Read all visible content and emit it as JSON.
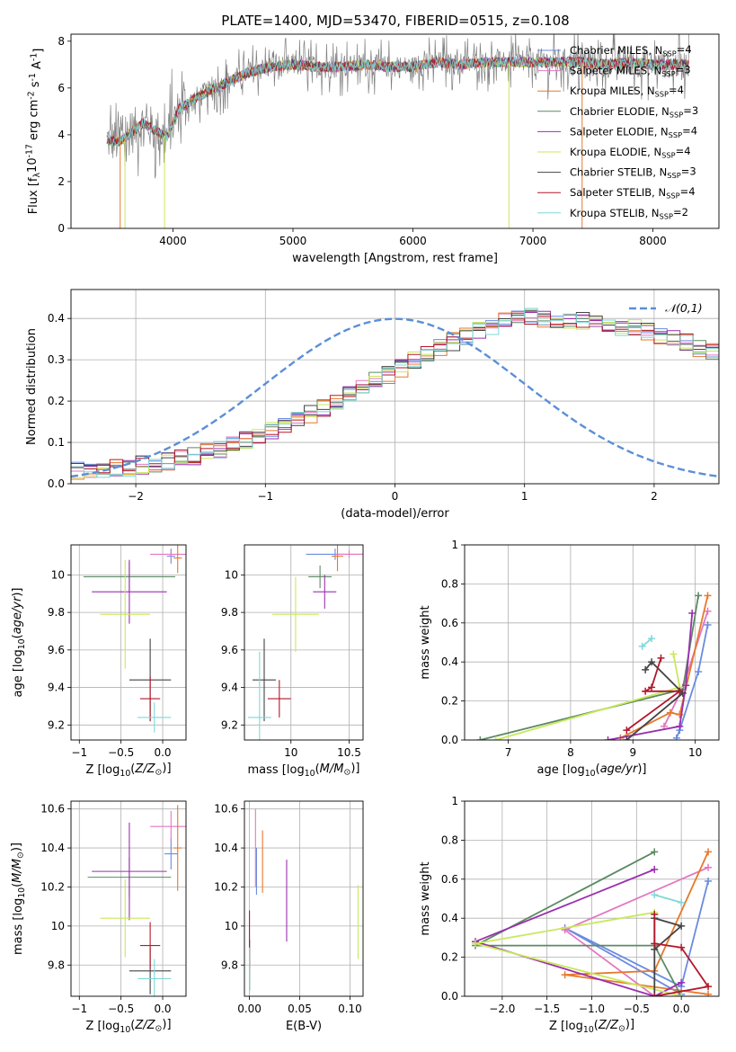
{
  "figure": {
    "title": "PLATE=1400, MJD=53470, FIBERID=0515, z=0.108"
  },
  "colors": {
    "chabrier_miles": "#6a8be0",
    "salpeter_miles": "#e377c2",
    "kroupa_miles": "#e8782a",
    "chabrier_elodie": "#5b8a63",
    "salpeter_elodie": "#9b2fae",
    "kroupa_elodie": "#c9e85a",
    "chabrier_stelib": "#444444",
    "salpeter_stelib": "#b2182b",
    "kroupa_stelib": "#7fd8d8",
    "data": "#808080",
    "normal_curve": "#5b8fd8"
  },
  "chart_data": [
    {
      "id": "spectrum",
      "type": "line",
      "title": "PLATE=1400, MJD=53470, FIBERID=0515, z=0.108",
      "xlabel": "wavelength [Angstrom, rest frame]",
      "ylabel": "Flux [f$_\\lambda$10$^{-17}$ erg cm$^{-2}$ s$^{-1}$ A$^{-1}$]",
      "xlim": [
        3150,
        8550
      ],
      "ylim": [
        0,
        8.3
      ],
      "xticks": [
        "4000",
        "5000",
        "6000",
        "7000",
        "8000"
      ],
      "yticks": [
        "0",
        "2",
        "4",
        "6",
        "8"
      ],
      "grid": false,
      "legend_position": "top-right",
      "legend": [
        {
          "key": "chabrier_miles",
          "label": "Chabrier MILES, N$_{SSP}$=4"
        },
        {
          "key": "salpeter_miles",
          "label": "Salpeter MILES, N$_{SSP}$=3"
        },
        {
          "key": "kroupa_miles",
          "label": "Kroupa MILES, N$_{SSP}$=4"
        },
        {
          "key": "chabrier_elodie",
          "label": "Chabrier ELODIE, N$_{SSP}$=3"
        },
        {
          "key": "salpeter_elodie",
          "label": "Salpeter ELODIE, N$_{SSP}$=4"
        },
        {
          "key": "kroupa_elodie",
          "label": "Kroupa ELODIE, N$_{SSP}$=4"
        },
        {
          "key": "chabrier_stelib",
          "label": "Chabrier STELIB, N$_{SSP}$=3"
        },
        {
          "key": "salpeter_stelib",
          "label": "Salpeter STELIB, N$_{SSP}$=4"
        },
        {
          "key": "kroupa_stelib",
          "label": "Kroupa STELIB, N$_{SSP}$=2"
        }
      ],
      "continuum": {
        "wavelength": [
          3450,
          3550,
          3650,
          3750,
          3850,
          3950,
          4050,
          4200,
          4400,
          4600,
          4800,
          5000,
          5200,
          5400,
          5600,
          5800,
          6000,
          6200,
          6400,
          6600,
          6800,
          7000,
          7200,
          7400,
          7600,
          7800,
          8000,
          8200
        ],
        "flux": [
          3.8,
          3.7,
          4.1,
          4.5,
          4.2,
          3.9,
          5.1,
          5.6,
          6.1,
          6.6,
          6.9,
          7.0,
          6.9,
          6.9,
          7.0,
          6.9,
          6.9,
          7.1,
          7.0,
          7.1,
          7.1,
          7.1,
          7.1,
          7.1,
          7.0,
          7.1,
          7.0,
          7.0
        ]
      }
    },
    {
      "id": "residuals",
      "type": "histogram",
      "xlabel": "(data-model)/error",
      "ylabel": "Normed distribution",
      "xlim": [
        -2.5,
        2.5
      ],
      "ylim": [
        0,
        0.47
      ],
      "xticks": [
        "−2",
        "−1",
        "0",
        "1",
        "2"
      ],
      "yticks": [
        "0.0",
        "0.1",
        "0.2",
        "0.3",
        "0.4"
      ],
      "grid": true,
      "legend_position": "top-right",
      "legend_label": "$\\mathcal{N}(0,1)$",
      "bin_width": 0.1,
      "bin_start": -2.5,
      "base_density": [
        0.03,
        0.031,
        0.034,
        0.037,
        0.04,
        0.045,
        0.049,
        0.055,
        0.06,
        0.068,
        0.076,
        0.085,
        0.094,
        0.105,
        0.116,
        0.128,
        0.141,
        0.155,
        0.169,
        0.184,
        0.199,
        0.215,
        0.231,
        0.247,
        0.264,
        0.28,
        0.297,
        0.313,
        0.329,
        0.344,
        0.358,
        0.371,
        0.382,
        0.392,
        0.399,
        0.402,
        0.401,
        0.399,
        0.397,
        0.394,
        0.39,
        0.386,
        0.381,
        0.375,
        0.368,
        0.36,
        0.351,
        0.341,
        0.33,
        0.318,
        0.306,
        0.293,
        0.28,
        0.266,
        0.252,
        0.238,
        0.223,
        0.209,
        0.195,
        0.181,
        0.167,
        0.154,
        0.141,
        0.128,
        0.116,
        0.105,
        0.094,
        0.084,
        0.075,
        0.066,
        0.058,
        0.052,
        0.047,
        0.043,
        0.04,
        0.037,
        0.035,
        0.033,
        0.032,
        0.031,
        0.03,
        0.03,
        0.029,
        0.029,
        0.028,
        0.028,
        0.028,
        0.028,
        0.027,
        0.027,
        0.027,
        0.027,
        0.027,
        0.027,
        0.027,
        0.027,
        0.027,
        0.027,
        0.027,
        0.027
      ]
    },
    {
      "id": "age_vs_Z",
      "type": "scatter",
      "xlabel": "Z [log$_{10}$($Z/Z_\\odot$)]",
      "ylabel": "age  [log$_{10}$($age/yr$)]",
      "xlim": [
        -1.1,
        0.28
      ],
      "ylim": [
        9.12,
        10.16
      ],
      "xticks": [
        -1.0,
        -0.5,
        0.0
      ],
      "yticks": [
        9.2,
        9.4,
        9.6,
        9.8,
        10.0
      ],
      "grid": true,
      "points": [
        {
          "key": "chabrier_miles",
          "x": 0.1,
          "y": 10.1,
          "xerr": 0.05,
          "yerr": 0.04
        },
        {
          "key": "salpeter_miles",
          "x": 0.1,
          "y": 10.11,
          "xerr": 0.25,
          "yerr": 0.02
        },
        {
          "key": "kroupa_miles",
          "x": 0.18,
          "y": 10.09,
          "xerr": 0.05,
          "yerr": 0.08
        },
        {
          "key": "chabrier_elodie",
          "x": -0.4,
          "y": 9.99,
          "xerr": 0.55,
          "yerr": 0.08
        },
        {
          "key": "salpeter_elodie",
          "x": -0.4,
          "y": 9.91,
          "xerr": 0.45,
          "yerr": 0.17
        },
        {
          "key": "kroupa_elodie",
          "x": -0.45,
          "y": 9.79,
          "xerr": 0.3,
          "yerr": 0.29
        },
        {
          "key": "chabrier_stelib",
          "x": -0.15,
          "y": 9.44,
          "xerr": 0.25,
          "yerr": 0.22
        },
        {
          "key": "salpeter_stelib",
          "x": -0.15,
          "y": 9.34,
          "xerr": 0.12,
          "yerr": 0.12
        },
        {
          "key": "kroupa_stelib",
          "x": -0.1,
          "y": 9.24,
          "xerr": 0.2,
          "yerr": 0.08
        }
      ]
    },
    {
      "id": "age_vs_mass",
      "type": "scatter",
      "xlabel": "mass [log$_{10}$($M/M_\\odot$)]",
      "ylabel": "",
      "xlim": [
        9.6,
        10.62
      ],
      "ylim": [
        9.12,
        10.16
      ],
      "xticks": [
        10.0,
        10.5
      ],
      "yticks": [
        9.2,
        9.4,
        9.6,
        9.8,
        10.0
      ],
      "grid": true,
      "points": [
        {
          "key": "chabrier_miles",
          "x": 10.38,
          "y": 10.11,
          "xerr": 0.25,
          "yerr": 0.03
        },
        {
          "key": "salpeter_miles",
          "x": 10.5,
          "y": 10.11,
          "xerr": 0.12,
          "yerr": 0.02
        },
        {
          "key": "kroupa_miles",
          "x": 10.4,
          "y": 10.1,
          "xerr": 0.05,
          "yerr": 0.08
        },
        {
          "key": "chabrier_elodie",
          "x": 10.25,
          "y": 9.99,
          "xerr": 0.1,
          "yerr": 0.06
        },
        {
          "key": "salpeter_elodie",
          "x": 10.29,
          "y": 9.91,
          "xerr": 0.1,
          "yerr": 0.09
        },
        {
          "key": "kroupa_elodie",
          "x": 10.04,
          "y": 9.79,
          "xerr": 0.2,
          "yerr": 0.2
        },
        {
          "key": "chabrier_stelib",
          "x": 9.77,
          "y": 9.44,
          "xerr": 0.1,
          "yerr": 0.22
        },
        {
          "key": "salpeter_stelib",
          "x": 9.9,
          "y": 9.34,
          "xerr": 0.1,
          "yerr": 0.1
        },
        {
          "key": "kroupa_stelib",
          "x": 9.73,
          "y": 9.24,
          "xerr": 0.1,
          "yerr": 0.35
        }
      ]
    },
    {
      "id": "weights_vs_age",
      "type": "line",
      "xlabel": "age  [log$_{10}$($age/yr$)]",
      "ylabel": "mass weight",
      "xlim": [
        6.3,
        10.38
      ],
      "ylim": [
        0,
        1
      ],
      "xticks": [
        7,
        8,
        9,
        10
      ],
      "yticks": [
        0.0,
        0.2,
        0.4,
        0.6,
        0.8,
        1.0
      ],
      "grid": true,
      "series": [
        {
          "key": "chabrier_miles",
          "x": [
            10.2,
            10.05,
            9.75,
            9.7
          ],
          "y": [
            0.59,
            0.35,
            0.05,
            0.01
          ]
        },
        {
          "key": "salpeter_miles",
          "x": [
            10.2,
            9.8,
            9.5
          ],
          "y": [
            0.66,
            0.27,
            0.07
          ]
        },
        {
          "key": "kroupa_miles",
          "x": [
            10.2,
            9.75,
            9.6,
            8.8
          ],
          "y": [
            0.74,
            0.13,
            0.14,
            0.01
          ]
        },
        {
          "key": "chabrier_elodie",
          "x": [
            10.05,
            9.8,
            6.55
          ],
          "y": [
            0.74,
            0.26,
            0.0
          ]
        },
        {
          "key": "salpeter_elodie",
          "x": [
            9.95,
            9.85,
            9.75,
            8.6
          ],
          "y": [
            0.65,
            0.28,
            0.07,
            0.0
          ]
        },
        {
          "key": "kroupa_elodie",
          "x": [
            9.65,
            9.75,
            6.8
          ],
          "y": [
            0.44,
            0.27,
            0.0
          ]
        },
        {
          "key": "chabrier_stelib",
          "x": [
            9.2,
            9.3,
            9.8,
            8.9
          ],
          "y": [
            0.36,
            0.4,
            0.24,
            0.0
          ]
        },
        {
          "key": "salpeter_stelib",
          "x": [
            9.45,
            9.3,
            9.2,
            9.75,
            8.9
          ],
          "y": [
            0.42,
            0.27,
            0.25,
            0.25,
            0.05
          ]
        },
        {
          "key": "kroupa_stelib",
          "x": [
            9.3,
            9.15
          ],
          "y": [
            0.52,
            0.48
          ]
        }
      ]
    },
    {
      "id": "mass_vs_Z",
      "type": "scatter",
      "xlabel": "Z [log$_{10}$($Z/Z_\\odot$)]",
      "ylabel": "mass [log$_{10}$($M/M_\\odot$)]",
      "xlim": [
        -1.1,
        0.28
      ],
      "ylim": [
        9.64,
        10.64
      ],
      "xticks": [
        -1.0,
        -0.5,
        0.0
      ],
      "yticks": [
        9.8,
        10.0,
        10.2,
        10.4,
        10.6
      ],
      "grid": true,
      "points": [
        {
          "key": "chabrier_miles",
          "x": 0.1,
          "y": 10.37,
          "xerr": 0.08,
          "yerr": 0.08
        },
        {
          "key": "salpeter_miles",
          "x": 0.1,
          "y": 10.51,
          "xerr": 0.25,
          "yerr": 0.08
        },
        {
          "key": "kroupa_miles",
          "x": 0.18,
          "y": 10.4,
          "xerr": 0.05,
          "yerr": 0.22
        },
        {
          "key": "chabrier_elodie",
          "x": -0.4,
          "y": 10.25,
          "xerr": 0.5,
          "yerr": 0.1
        },
        {
          "key": "salpeter_elodie",
          "x": -0.4,
          "y": 10.28,
          "xerr": 0.45,
          "yerr": 0.25
        },
        {
          "key": "kroupa_elodie",
          "x": -0.45,
          "y": 10.04,
          "xerr": 0.3,
          "yerr": 0.2
        },
        {
          "key": "chabrier_stelib",
          "x": -0.15,
          "y": 9.77,
          "xerr": 0.25,
          "yerr": 0.12
        },
        {
          "key": "salpeter_stelib",
          "x": -0.15,
          "y": 9.9,
          "xerr": 0.12,
          "yerr": 0.12
        },
        {
          "key": "kroupa_stelib",
          "x": -0.1,
          "y": 9.73,
          "xerr": 0.2,
          "yerr": 0.1
        }
      ]
    },
    {
      "id": "mass_vs_ebv",
      "type": "scatter",
      "xlabel": "E(B-V)",
      "ylabel": "",
      "xlim": [
        -0.005,
        0.113
      ],
      "ylim": [
        9.64,
        10.64
      ],
      "xticks": [
        "0.00",
        "0.05",
        "0.10"
      ],
      "yticks": [
        9.8,
        10.0,
        10.2,
        10.4,
        10.6
      ],
      "grid": true,
      "points": [
        {
          "key": "chabrier_miles",
          "x": 0.007,
          "y": 10.28,
          "xerr": 0,
          "yerr": 0.12
        },
        {
          "key": "salpeter_miles",
          "x": 0.006,
          "y": 10.4,
          "xerr": 0,
          "yerr": 0.2
        },
        {
          "key": "kroupa_miles",
          "x": 0.013,
          "y": 10.33,
          "xerr": 0,
          "yerr": 0.16
        },
        {
          "key": "chabrier_elodie",
          "x": 0.0,
          "y": 9.8,
          "xerr": 0,
          "yerr": 0.13
        },
        {
          "key": "salpeter_elodie",
          "x": 0.037,
          "y": 10.13,
          "xerr": 0,
          "yerr": 0.21
        },
        {
          "key": "kroupa_elodie",
          "x": 0.108,
          "y": 10.02,
          "xerr": 0,
          "yerr": 0.19
        },
        {
          "key": "chabrier_stelib",
          "x": 0.0,
          "y": 9.8,
          "xerr": 0,
          "yerr": 0.13
        },
        {
          "key": "salpeter_stelib",
          "x": 0.0,
          "y": 9.93,
          "xerr": 0,
          "yerr": 0.15
        },
        {
          "key": "kroupa_stelib",
          "x": 0.0,
          "y": 9.77,
          "xerr": 0,
          "yerr": 0.12
        }
      ]
    },
    {
      "id": "weights_vs_Z",
      "type": "line",
      "xlabel": "Z [log$_{10}$($Z/Z_\\odot$)]",
      "ylabel": "mass weight",
      "xlim": [
        -2.42,
        0.42
      ],
      "ylim": [
        0,
        1
      ],
      "xticks": [
        "−2.0",
        "−1.5",
        "−1.0",
        "−0.5",
        "0.0"
      ],
      "yticks": [
        0.0,
        0.2,
        0.4,
        0.6,
        0.8,
        1.0
      ],
      "grid": true,
      "series": [
        {
          "key": "chabrier_miles",
          "x": [
            0.3,
            0.0,
            -1.3,
            0.0
          ],
          "y": [
            0.59,
            0.05,
            0.35,
            0.01
          ]
        },
        {
          "key": "salpeter_miles",
          "x": [
            0.3,
            -1.3,
            -0.3
          ],
          "y": [
            0.66,
            0.34,
            0.0
          ]
        },
        {
          "key": "kroupa_miles",
          "x": [
            0.3,
            -0.3,
            -1.3,
            0.3
          ],
          "y": [
            0.74,
            0.13,
            0.11,
            0.01
          ]
        },
        {
          "key": "chabrier_elodie",
          "x": [
            -0.3,
            -2.3,
            -0.3,
            0.0
          ],
          "y": [
            0.74,
            0.26,
            0.26,
            0.0
          ]
        },
        {
          "key": "salpeter_elodie",
          "x": [
            -0.3,
            -2.3,
            -0.3,
            0.0
          ],
          "y": [
            0.65,
            0.28,
            0.0,
            0.07
          ]
        },
        {
          "key": "kroupa_elodie",
          "x": [
            -0.3,
            -2.3,
            0.0
          ],
          "y": [
            0.43,
            0.27,
            0.0
          ]
        },
        {
          "key": "chabrier_stelib",
          "x": [
            -0.3,
            0.0,
            -0.3,
            -0.3
          ],
          "y": [
            0.24,
            0.36,
            0.4,
            0.0
          ]
        },
        {
          "key": "salpeter_stelib",
          "x": [
            -0.3,
            -0.3,
            0.0,
            0.3,
            -0.3
          ],
          "y": [
            0.42,
            0.27,
            0.25,
            0.05,
            0.0
          ]
        },
        {
          "key": "kroupa_stelib",
          "x": [
            -0.3,
            0.0
          ],
          "y": [
            0.52,
            0.48
          ]
        }
      ]
    }
  ]
}
